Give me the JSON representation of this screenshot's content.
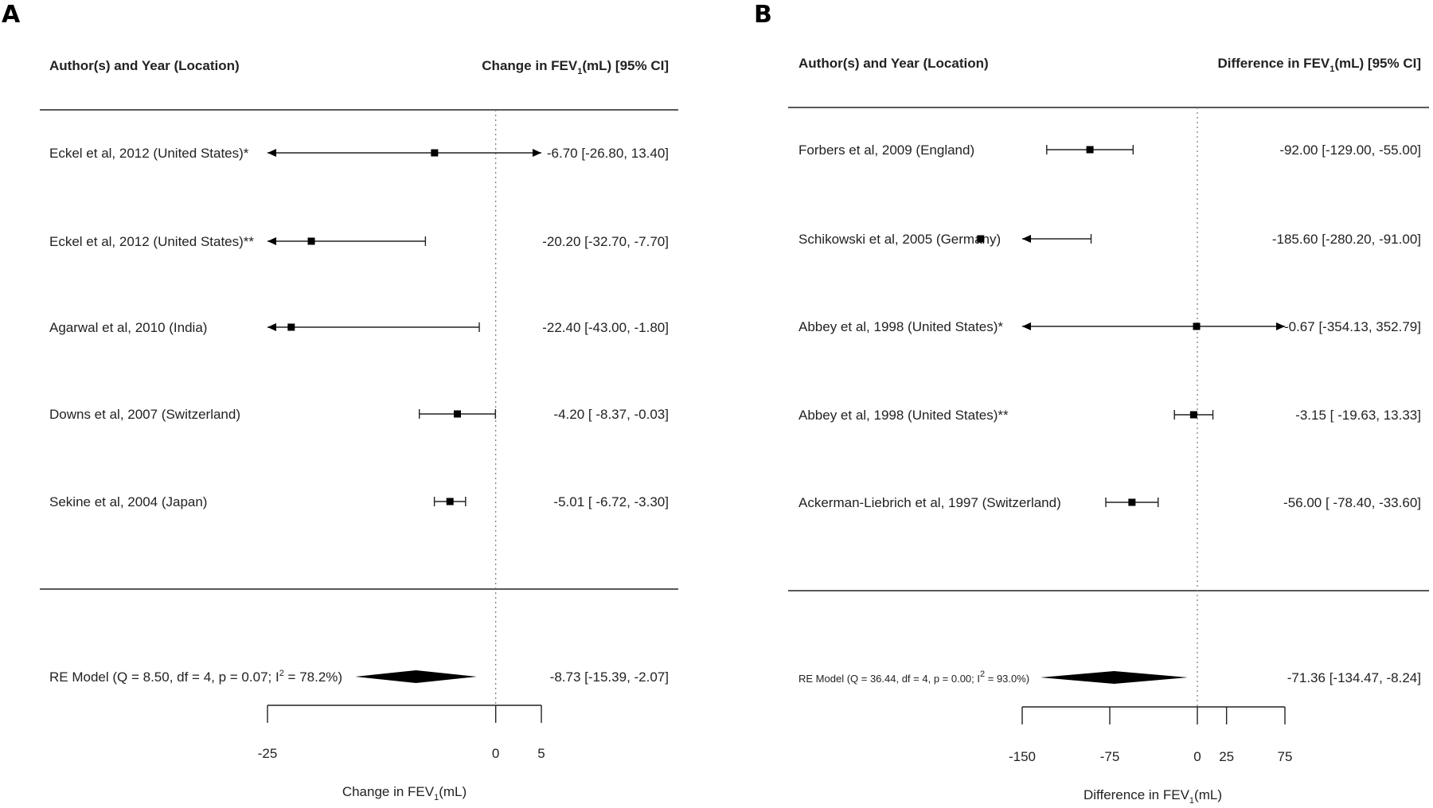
{
  "panels": [
    {
      "letter": "A",
      "header_left": "Author(s) and Year (Location)",
      "header_right_pre": "Change in FEV",
      "header_right_sub": "1",
      "header_right_post": "(mL) [95% CI]",
      "xaxis_pre": "Change in FEV",
      "xaxis_sub": "1",
      "xaxis_post": "(mL)",
      "model_label_pre": "RE Model (Q = 8.50, df = 4, p = 0.07; I",
      "model_label_sup": "2",
      "model_label_post": " = 78.2%)",
      "model_ci_text": "-8.73 [-15.39, -2.07]"
    },
    {
      "letter": "B",
      "header_left": "Author(s) and Year (Location)",
      "header_right_pre": "Difference in FEV",
      "header_right_sub": "1",
      "header_right_post": "(mL) [95% CI]",
      "xaxis_pre": "Difference in FEV",
      "xaxis_sub": "1",
      "xaxis_post": "(mL)",
      "model_label_pre": "RE Model (Q = 36.44, df = 4, p = 0.00; I",
      "model_label_sup": "2",
      "model_label_post": " = 93.0%)",
      "model_ci_text": "-71.36 [-134.47,  -8.24]"
    }
  ],
  "chart_data": [
    {
      "type": "forest",
      "xlim": [
        -25,
        5
      ],
      "ticks": [
        -25,
        0,
        5
      ],
      "tick_labels": [
        "-25",
        "0",
        "5"
      ],
      "reference_line": 0,
      "studies": [
        {
          "label": "Eckel et al, 2012 (United States)*",
          "estimate": -6.7,
          "lower": -26.8,
          "upper": 13.4,
          "ci_text": "-6.70 [-26.80, 13.40]"
        },
        {
          "label": "Eckel et al, 2012 (United States)**",
          "estimate": -20.2,
          "lower": -32.7,
          "upper": -7.7,
          "ci_text": "-20.20 [-32.70, -7.70]"
        },
        {
          "label": "Agarwal et al, 2010 (India)",
          "estimate": -22.4,
          "lower": -43.0,
          "upper": -1.8,
          "ci_text": "-22.40 [-43.00, -1.80]"
        },
        {
          "label": "Downs et al, 2007 (Switzerland)",
          "estimate": -4.2,
          "lower": -8.37,
          "upper": -0.03,
          "ci_text": "-4.20 [ -8.37, -0.03]"
        },
        {
          "label": "Sekine et al, 2004 (Japan)",
          "estimate": -5.01,
          "lower": -6.72,
          "upper": -3.3,
          "ci_text": "-5.01 [ -6.72, -3.30]"
        }
      ],
      "summary": {
        "estimate": -8.73,
        "lower": -15.39,
        "upper": -2.07
      }
    },
    {
      "type": "forest",
      "xlim": [
        -150,
        75
      ],
      "ticks": [
        -150,
        -75,
        0,
        25,
        75
      ],
      "tick_labels": [
        "-150",
        "-75",
        "0",
        "25",
        "75"
      ],
      "reference_line": 0,
      "studies": [
        {
          "label": "Forbers et al, 2009 (England)",
          "estimate": -92.0,
          "lower": -129.0,
          "upper": -55.0,
          "ci_text": "-92.00 [-129.00, -55.00]"
        },
        {
          "label": "Schikowski et al, 2005 (Germany)",
          "estimate": -185.6,
          "lower": -280.2,
          "upper": -91.0,
          "ci_text": "-185.60 [-280.20, -91.00]"
        },
        {
          "label": "Abbey et al, 1998 (United States)*",
          "estimate": -0.67,
          "lower": -354.13,
          "upper": 352.79,
          "ci_text": "-0.67 [-354.13, 352.79]"
        },
        {
          "label": "Abbey et al, 1998 (United States)**",
          "estimate": -3.15,
          "lower": -19.63,
          "upper": 13.33,
          "ci_text": "-3.15 [ -19.63,  13.33]"
        },
        {
          "label": "Ackerman-Liebrich et al, 1997 (Switzerland)",
          "estimate": -56.0,
          "lower": -78.4,
          "upper": -33.6,
          "ci_text": "-56.00 [ -78.40, -33.60]"
        }
      ],
      "summary": {
        "estimate": -71.36,
        "lower": -134.47,
        "upper": -8.24
      }
    }
  ]
}
